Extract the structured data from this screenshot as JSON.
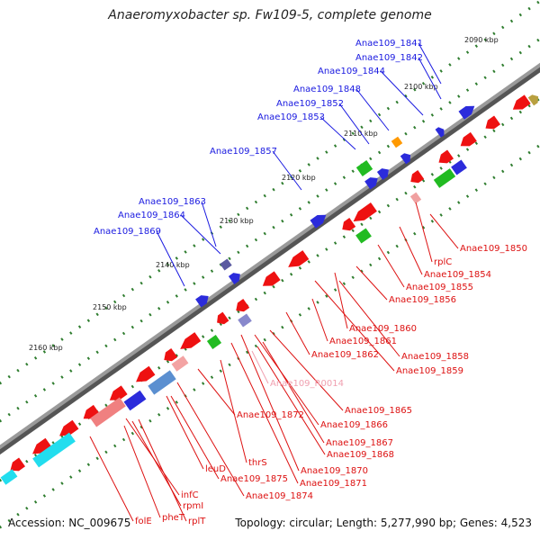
{
  "title": "Anaeromyxobacter sp. Fw109-5, complete genome",
  "footer": {
    "accession": "Accession: NC_009675",
    "summary": "Topology: circular; Length: 5,277,990 bp; Genes: 4,523"
  },
  "colors": {
    "forward_gene": "#2b2bdb",
    "reverse_gene": "#ee1111",
    "green_gene": "#22bb22",
    "rna_gene": "#f0a0a0",
    "backbone": "#7a7a7a",
    "tick_green": "#2f7d2f"
  },
  "scale_labels": [
    "2090 kbp",
    "2100 kbp",
    "2110 kbp",
    "2120 kbp",
    "2130 kbp",
    "2140 kbp",
    "2150 kbp",
    "2160 kbp"
  ],
  "forward_labels": [
    "Anae109_1841",
    "Anae109_1842",
    "Anae109_1844",
    "Anae109_1848",
    "Anae109_1852",
    "Anae109_1853",
    "Anae109_1857",
    "Anae109_1863",
    "Anae109_1864",
    "Anae109_1869"
  ],
  "reverse_labels": [
    "Anae109_1850",
    "rplC",
    "Anae109_1854",
    "Anae109_1855",
    "Anae109_1856",
    "Anae109_1860",
    "Anae109_1861",
    "Anae109_1858",
    "Anae109_1862",
    "Anae109_1859",
    "Anae109_R0014",
    "Anae109_1865",
    "Anae109_1866",
    "Anae109_1872",
    "Anae109_1867",
    "Anae109_1868",
    "thrS",
    "Anae109_1870",
    "leuD",
    "Anae109_1871",
    "Anae109_1875",
    "infC",
    "Anae109_1874",
    "rpmI",
    "pheT",
    "rplT",
    "folE"
  ]
}
